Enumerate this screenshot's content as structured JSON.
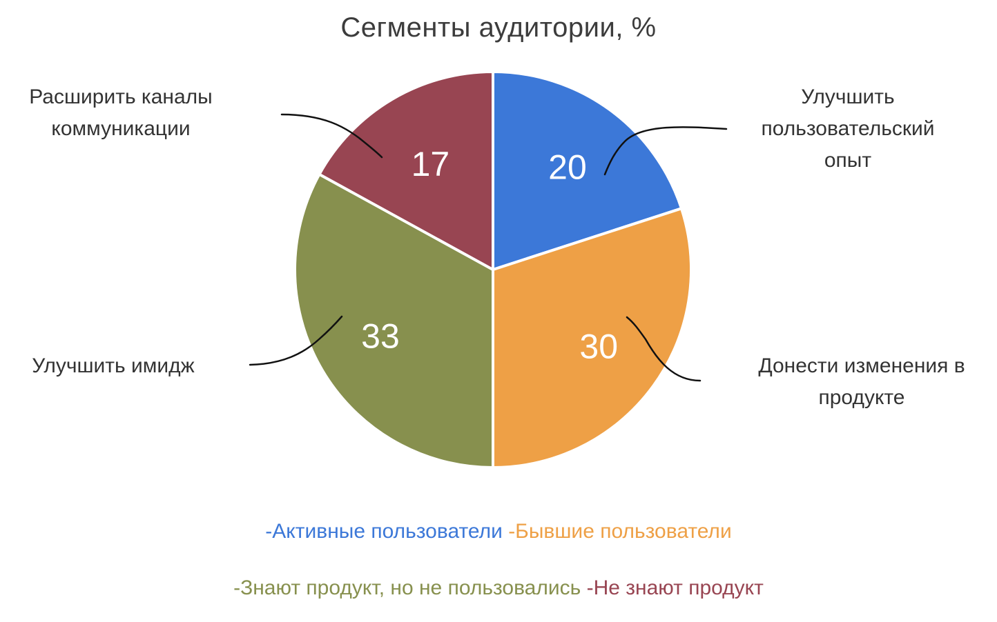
{
  "chart_data": {
    "type": "pie",
    "title": "Сегменты аудитории, %",
    "slices": [
      {
        "label": "-Активные пользователи",
        "value": 20,
        "data_label": "20",
        "color": "#3c78d8"
      },
      {
        "label": "-Бывшие пользователи",
        "value": 30,
        "data_label": "30",
        "color": "#eea046"
      },
      {
        "label": "-Знают продукт, но не пользовались",
        "value": 33,
        "data_label": "33",
        "color": "#87904e"
      },
      {
        "label": "-Не знают продукт",
        "value": 17,
        "data_label": "17",
        "color": "#984552"
      }
    ],
    "annotations": [
      {
        "slice": 0,
        "lines": [
          "Улучшить",
          "пользовательский",
          "опыт"
        ]
      },
      {
        "slice": 1,
        "lines": [
          "Донести изменения в",
          "продукте"
        ]
      },
      {
        "slice": 2,
        "lines": [
          "Улучшить имидж"
        ]
      },
      {
        "slice": 3,
        "lines": [
          "Расширить каналы",
          "коммуникации"
        ]
      }
    ],
    "legend_position": "bottom"
  }
}
